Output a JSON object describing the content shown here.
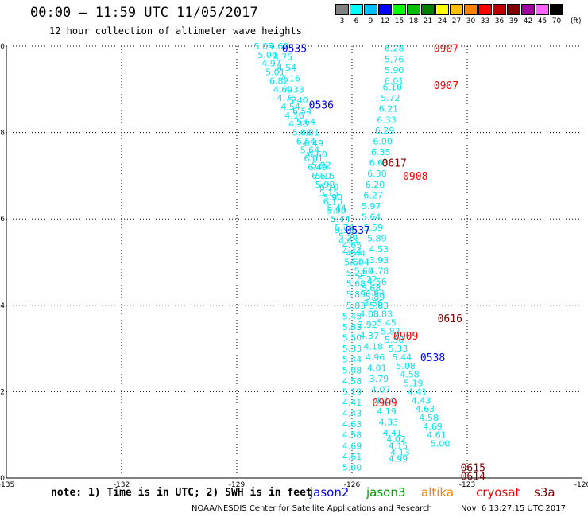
{
  "header": {
    "title": "00:00 – 11:59 UTC 11/05/2017",
    "subtitle": "12 hour collection of altimeter wave heights"
  },
  "scale": {
    "unit": "(ft)",
    "bins": [
      {
        "label": "3",
        "color": "#808080"
      },
      {
        "label": "6",
        "color": "#00ffff"
      },
      {
        "label": "9",
        "color": "#00bfff"
      },
      {
        "label": "12",
        "color": "#0000ff"
      },
      {
        "label": "15",
        "color": "#00ff00"
      },
      {
        "label": "18",
        "color": "#00c000"
      },
      {
        "label": "21",
        "color": "#008000"
      },
      {
        "label": "24",
        "color": "#ffff00"
      },
      {
        "label": "27",
        "color": "#ffc000"
      },
      {
        "label": "30",
        "color": "#ff8000"
      },
      {
        "label": "33",
        "color": "#ff0000"
      },
      {
        "label": "36",
        "color": "#c00000"
      },
      {
        "label": "39",
        "color": "#800000"
      },
      {
        "label": "42",
        "color": "#a000a0"
      },
      {
        "label": "45",
        "color": "#ff60ff"
      },
      {
        "label": "70",
        "color": "#000000"
      }
    ]
  },
  "footer": {
    "note": "note: 1) Time is in UTC; 2) SWH is in feet",
    "missions": [
      {
        "label": "jason2",
        "color": "#0000ff"
      },
      {
        "label": "jason3",
        "color": "#00a000"
      },
      {
        "label": "altika",
        "color": "#ff8000"
      },
      {
        "label": "cryosat",
        "color": "#ff0000"
      },
      {
        "label": "s3a",
        "color": "#800000"
      }
    ],
    "credit": "NOAA/NESDIS Center for Satellite Applications and Research",
    "timestamp": "Nov  6 13:27:15 UTC 2017"
  },
  "chart_data": {
    "type": "scatter",
    "title": "00:00 – 11:59 UTC 11/05/2017",
    "subtitle": "12 hour collection of altimeter wave heights",
    "xlabel": "",
    "ylabel": "",
    "xlim": [
      -135,
      -120
    ],
    "ylim": [
      0,
      10
    ],
    "x_ticks": [
      -135,
      -132,
      -129,
      -126,
      -123,
      -120
    ],
    "x_tick_labels": [
      "-135",
      "-132",
      "-129",
      "-126",
      "-123",
      "-120"
    ],
    "y_ticks": [
      0,
      2,
      4,
      6,
      8,
      10
    ],
    "y_tick_labels": [
      "0",
      "2",
      "4",
      "6",
      "8",
      "10"
    ],
    "grid": true,
    "value_color": "#00e5ee",
    "series": [
      {
        "name": "jason2",
        "color": "#0000ff",
        "values": [
          {
            "x": -124.8,
            "y": 0.45,
            "label": "4.99"
          },
          {
            "x": -124.75,
            "y": 0.6,
            "label": "4.13"
          },
          {
            "x": -124.8,
            "y": 0.75,
            "label": "4.15"
          },
          {
            "x": -124.85,
            "y": 0.9,
            "label": "4.02"
          },
          {
            "x": -124.95,
            "y": 1.05,
            "label": "4.41"
          },
          {
            "x": -125.05,
            "y": 1.3,
            "label": "4.33"
          },
          {
            "x": -125.1,
            "y": 1.55,
            "label": "4.19"
          },
          {
            "x": -125.15,
            "y": 1.8,
            "label": "4.14"
          },
          {
            "x": -125.25,
            "y": 2.05,
            "label": "4.07"
          },
          {
            "x": -125.3,
            "y": 2.3,
            "label": "3.79"
          },
          {
            "x": -125.35,
            "y": 2.55,
            "label": "4.01"
          },
          {
            "x": -125.4,
            "y": 2.8,
            "label": "4.96"
          },
          {
            "x": -125.45,
            "y": 3.05,
            "label": "4.18"
          },
          {
            "x": -125.55,
            "y": 3.3,
            "label": "4.37"
          },
          {
            "x": -125.6,
            "y": 3.55,
            "label": "3.92"
          },
          {
            "x": -125.55,
            "y": 3.8,
            "label": "4.08"
          },
          {
            "x": -125.45,
            "y": 4.05,
            "label": "3.36"
          },
          {
            "x": -125.4,
            "y": 4.3,
            "label": "4.64"
          },
          {
            "x": -125.35,
            "y": 4.55,
            "label": "4.56"
          },
          {
            "x": -125.3,
            "y": 4.8,
            "label": "4.78"
          },
          {
            "x": -125.3,
            "y": 5.05,
            "label": "3.93"
          },
          {
            "x": -125.3,
            "y": 5.3,
            "label": "4.53"
          },
          {
            "x": -125.35,
            "y": 5.55,
            "label": "5.89"
          },
          {
            "x": -125.45,
            "y": 5.8,
            "label": "5.59"
          },
          {
            "x": -125.5,
            "y": 6.05,
            "label": "5.64"
          },
          {
            "x": -125.5,
            "y": 6.3,
            "label": "5.97"
          },
          {
            "x": -125.45,
            "y": 6.55,
            "label": "6.27"
          },
          {
            "x": -125.4,
            "y": 6.8,
            "label": "6.20"
          },
          {
            "x": -125.35,
            "y": 7.05,
            "label": "6.30"
          },
          {
            "x": -125.3,
            "y": 7.3,
            "label": "6.63"
          },
          {
            "x": -125.25,
            "y": 7.55,
            "label": "6.35"
          },
          {
            "x": -125.2,
            "y": 7.8,
            "label": "6.00"
          },
          {
            "x": -125.15,
            "y": 8.05,
            "label": "6.29"
          },
          {
            "x": -125.1,
            "y": 8.3,
            "label": "6.33"
          },
          {
            "x": -125.05,
            "y": 8.55,
            "label": "6.21"
          },
          {
            "x": -125.0,
            "y": 8.8,
            "label": "5.72"
          },
          {
            "x": -124.95,
            "y": 9.05,
            "label": "6.10"
          },
          {
            "x": -124.9,
            "y": 9.2,
            "label": "6.01"
          },
          {
            "x": -124.9,
            "y": 9.45,
            "label": "5.90"
          },
          {
            "x": -124.9,
            "y": 9.7,
            "label": "5.76"
          },
          {
            "x": -124.9,
            "y": 9.95,
            "label": "6.28"
          }
        ]
      },
      {
        "name": "jason3",
        "color": "#00a000",
        "values": [
          {
            "x": -126.0,
            "y": 0.25,
            "label": "5.00"
          },
          {
            "x": -126.0,
            "y": 0.5,
            "label": "4.61"
          },
          {
            "x": -126.0,
            "y": 0.75,
            "label": "4.69"
          },
          {
            "x": -126.0,
            "y": 1.0,
            "label": "4.58"
          },
          {
            "x": -126.0,
            "y": 1.25,
            "label": "4.63"
          },
          {
            "x": -126.0,
            "y": 1.5,
            "label": "4.43"
          },
          {
            "x": -126.0,
            "y": 1.75,
            "label": "4.41"
          },
          {
            "x": -126.0,
            "y": 2.0,
            "label": "5.19"
          },
          {
            "x": -126.0,
            "y": 2.25,
            "label": "4.58"
          },
          {
            "x": -126.0,
            "y": 2.5,
            "label": "5.08"
          },
          {
            "x": -126.0,
            "y": 2.75,
            "label": "5.44"
          },
          {
            "x": -126.0,
            "y": 3.0,
            "label": "5.33"
          },
          {
            "x": -126.0,
            "y": 3.25,
            "label": "5.50"
          },
          {
            "x": -126.0,
            "y": 3.5,
            "label": "5.83"
          },
          {
            "x": -126.0,
            "y": 3.75,
            "label": "5.45"
          },
          {
            "x": -125.9,
            "y": 4.0,
            "label": "5.83"
          },
          {
            "x": -125.9,
            "y": 4.25,
            "label": "5.89"
          },
          {
            "x": -125.9,
            "y": 4.5,
            "label": "5.68"
          },
          {
            "x": -125.9,
            "y": 4.75,
            "label": "5.22"
          },
          {
            "x": -125.95,
            "y": 5.0,
            "label": "5.60"
          },
          {
            "x": -126.0,
            "y": 5.25,
            "label": "4.44"
          },
          {
            "x": -126.1,
            "y": 5.5,
            "label": "4.65"
          },
          {
            "x": -126.2,
            "y": 5.75,
            "label": "5.56"
          },
          {
            "x": -126.3,
            "y": 6.0,
            "label": "5.74"
          },
          {
            "x": -126.4,
            "y": 6.25,
            "label": "5.44"
          },
          {
            "x": -126.5,
            "y": 6.5,
            "label": "5.90"
          },
          {
            "x": -126.6,
            "y": 6.75,
            "label": "6.10"
          },
          {
            "x": -126.7,
            "y": 7.0,
            "label": "5.15"
          },
          {
            "x": -126.8,
            "y": 7.25,
            "label": "5.92"
          },
          {
            "x": -126.9,
            "y": 7.5,
            "label": "6.60"
          },
          {
            "x": -127.0,
            "y": 7.75,
            "label": "6.49"
          },
          {
            "x": -127.1,
            "y": 8.0,
            "label": "6.01"
          },
          {
            "x": -127.2,
            "y": 8.25,
            "label": "5.64"
          },
          {
            "x": -127.3,
            "y": 8.5,
            "label": "6.54"
          },
          {
            "x": -127.4,
            "y": 8.75,
            "label": "5.40"
          },
          {
            "x": -127.5,
            "y": 9.0,
            "label": "4.33"
          },
          {
            "x": -127.6,
            "y": 9.25,
            "label": "4.16"
          },
          {
            "x": -127.7,
            "y": 9.5,
            "label": "4.54"
          },
          {
            "x": -127.8,
            "y": 9.75,
            "label": "4.75"
          },
          {
            "x": -127.9,
            "y": 10.0,
            "label": "4.69"
          }
        ]
      },
      {
        "name": "cryosat",
        "color": "#ff0000",
        "values": []
      },
      {
        "name": "s3a",
        "color": "#800000",
        "values": []
      }
    ],
    "value_labels": [
      {
        "x": -128.3,
        "y": 10.0,
        "t": "5.05"
      },
      {
        "x": -128.2,
        "y": 9.8,
        "t": "5.04"
      },
      {
        "x": -128.1,
        "y": 9.6,
        "t": "4.97"
      },
      {
        "x": -128.0,
        "y": 9.4,
        "t": "5.01"
      },
      {
        "x": -127.9,
        "y": 9.2,
        "t": "6.82"
      },
      {
        "x": -127.8,
        "y": 9.0,
        "t": "4.69"
      },
      {
        "x": -127.7,
        "y": 8.8,
        "t": "4.75"
      },
      {
        "x": -127.6,
        "y": 8.6,
        "t": "4.54"
      },
      {
        "x": -127.5,
        "y": 8.4,
        "t": "4.16"
      },
      {
        "x": -127.4,
        "y": 8.2,
        "t": "4.33"
      },
      {
        "x": -127.3,
        "y": 8.0,
        "t": "5.40"
      },
      {
        "x": -127.2,
        "y": 7.8,
        "t": "6.54"
      },
      {
        "x": -127.1,
        "y": 7.6,
        "t": "5.64"
      },
      {
        "x": -127.0,
        "y": 7.4,
        "t": "6.01"
      },
      {
        "x": -126.9,
        "y": 7.2,
        "t": "6.49"
      },
      {
        "x": -126.8,
        "y": 7.0,
        "t": "6.60"
      },
      {
        "x": -126.7,
        "y": 6.8,
        "t": "5.92"
      },
      {
        "x": -126.6,
        "y": 6.6,
        "t": "5.15"
      },
      {
        "x": -126.5,
        "y": 6.4,
        "t": "6.10"
      },
      {
        "x": -126.4,
        "y": 6.2,
        "t": "5.90"
      },
      {
        "x": -126.3,
        "y": 6.0,
        "t": "5.44"
      },
      {
        "x": -126.2,
        "y": 5.8,
        "t": "5.74"
      },
      {
        "x": -126.1,
        "y": 5.6,
        "t": "5.56"
      },
      {
        "x": -126.0,
        "y": 5.4,
        "t": "4.65"
      },
      {
        "x": -125.9,
        "y": 5.2,
        "t": "4.44"
      },
      {
        "x": -125.8,
        "y": 5.0,
        "t": "4.44"
      },
      {
        "x": -125.7,
        "y": 4.8,
        "t": "5.60"
      },
      {
        "x": -125.6,
        "y": 4.6,
        "t": "5.22"
      },
      {
        "x": -125.5,
        "y": 4.4,
        "t": "5.68"
      },
      {
        "x": -125.4,
        "y": 4.2,
        "t": "5.89"
      },
      {
        "x": -125.3,
        "y": 4.0,
        "t": "5.83"
      },
      {
        "x": -125.2,
        "y": 3.8,
        "t": "5.83"
      },
      {
        "x": -125.1,
        "y": 3.6,
        "t": "5.45"
      },
      {
        "x": -125.0,
        "y": 3.4,
        "t": "5.83"
      },
      {
        "x": -124.9,
        "y": 3.2,
        "t": "5.50"
      },
      {
        "x": -124.8,
        "y": 3.0,
        "t": "5.33"
      },
      {
        "x": -124.7,
        "y": 2.8,
        "t": "5.44"
      },
      {
        "x": -124.6,
        "y": 2.6,
        "t": "5.08"
      },
      {
        "x": -124.5,
        "y": 2.4,
        "t": "4.58"
      },
      {
        "x": -124.4,
        "y": 2.2,
        "t": "5.19"
      },
      {
        "x": -124.3,
        "y": 2.0,
        "t": "4.41"
      },
      {
        "x": -124.2,
        "y": 1.8,
        "t": "4.43"
      },
      {
        "x": -124.1,
        "y": 1.6,
        "t": "4.63"
      },
      {
        "x": -124.0,
        "y": 1.4,
        "t": "4.58"
      },
      {
        "x": -123.9,
        "y": 1.2,
        "t": "4.69"
      },
      {
        "x": -123.8,
        "y": 1.0,
        "t": "4.61"
      },
      {
        "x": -123.7,
        "y": 0.8,
        "t": "5.00"
      }
    ],
    "pass_labels": [
      {
        "x": -127.5,
        "y": 9.95,
        "t": "0535",
        "color": "#0000ff"
      },
      {
        "x": -126.8,
        "y": 8.65,
        "t": "0536",
        "color": "#0000ff"
      },
      {
        "x": -125.85,
        "y": 5.75,
        "t": "0537",
        "color": "#0000ff"
      },
      {
        "x": -123.9,
        "y": 2.8,
        "t": "0538",
        "color": "#0000ff"
      },
      {
        "x": -123.55,
        "y": 9.95,
        "t": "0907",
        "color": "#ff0000"
      },
      {
        "x": -123.55,
        "y": 9.1,
        "t": "0907",
        "color": "#ff0000"
      },
      {
        "x": -124.35,
        "y": 7.0,
        "t": "0908",
        "color": "#ff0000"
      },
      {
        "x": -124.6,
        "y": 3.3,
        "t": "0909",
        "color": "#ff0000"
      },
      {
        "x": -125.15,
        "y": 1.75,
        "t": "0909",
        "color": "#ff0000"
      },
      {
        "x": -124.9,
        "y": 7.3,
        "t": "0617",
        "color": "#800000"
      },
      {
        "x": -123.45,
        "y": 3.7,
        "t": "0616",
        "color": "#800000"
      },
      {
        "x": -122.85,
        "y": 0.25,
        "t": "0615",
        "color": "#800000"
      },
      {
        "x": -122.85,
        "y": 0.05,
        "t": "0614",
        "color": "#800000"
      }
    ]
  }
}
